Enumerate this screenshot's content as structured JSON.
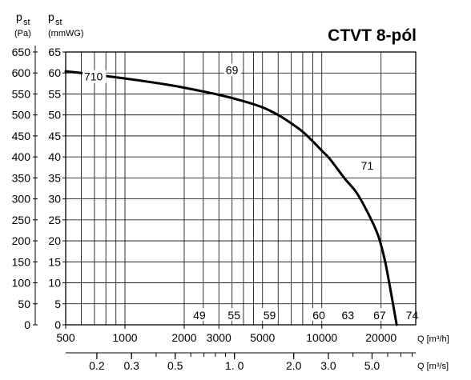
{
  "chart_data": {
    "type": "line",
    "title": "CTVT 8-pól",
    "x_scale": "log",
    "y_scale": "linear",
    "grid": true,
    "y_left_label": {
      "symbol": "p",
      "sub": "st",
      "unit": "(Pa)"
    },
    "y_right_label": {
      "symbol": "p",
      "sub": "st",
      "unit": "(mmWG)"
    },
    "x_flow_label": "Q [m³/h]",
    "x_flow_secondary_label": "Q [m³/s]",
    "xlim_m3h": [
      500,
      30000
    ],
    "ylim_pa": [
      0,
      650
    ],
    "ylim_mmwg": [
      0,
      65
    ],
    "y_pa_ticks": [
      0,
      50,
      100,
      150,
      200,
      250,
      300,
      350,
      400,
      450,
      500,
      550,
      600,
      650
    ],
    "y_pa_tick_labels": [
      "0",
      "50",
      "100",
      "150",
      "200",
      "250",
      "300",
      "350",
      "400",
      "450",
      "500",
      "550",
      "600",
      "650"
    ],
    "y_mmwg_ticks": [
      0,
      5,
      10,
      15,
      20,
      25,
      30,
      35,
      40,
      45,
      50,
      55,
      60,
      65
    ],
    "y_mmwg_tick_labels": [
      "0",
      "5",
      "10",
      "15",
      "20",
      "25",
      "30",
      "35",
      "40",
      "45",
      "50",
      "55",
      "60",
      "65"
    ],
    "x_gridlines_m3h": [
      600,
      700,
      800,
      900,
      1000,
      2000,
      2500,
      3000,
      3500,
      4000,
      4500,
      5000,
      6000,
      7000,
      8000,
      9000,
      10000,
      20000
    ],
    "x_m3h_ticks": [
      {
        "value": 500,
        "label": "500"
      },
      {
        "value": 1000,
        "label": "1000"
      },
      {
        "value": 2000,
        "label": "2000"
      },
      {
        "value": 3000,
        "label": "3000"
      },
      {
        "value": 5000,
        "label": "5000"
      },
      {
        "value": 10000,
        "label": "10000"
      },
      {
        "value": 20000,
        "label": "20000"
      }
    ],
    "x_m3s_ticks": [
      {
        "value": 0.2,
        "label": "0.2"
      },
      {
        "value": 0.3,
        "label": "0.3"
      },
      {
        "value": 0.5,
        "label": "0.5"
      },
      {
        "value": 1.0,
        "label": "1. 0"
      },
      {
        "value": 2.0,
        "label": "2.0"
      },
      {
        "value": 3.0,
        "label": "3.0"
      },
      {
        "value": 5.0,
        "label": "5.0"
      }
    ],
    "series": [
      {
        "x_m3h": [
          500,
          600,
          700,
          1000,
          1500,
          2000,
          3000,
          4000,
          5000,
          6000,
          7000,
          8000,
          9000,
          10000,
          11000,
          13000,
          15000,
          17000,
          19000,
          20000,
          21000,
          22000,
          23000,
          24000
        ],
        "y_pa": [
          604,
          600,
          596,
          587,
          575,
          565,
          548,
          533,
          518,
          500,
          480,
          460,
          437,
          415,
          395,
          350,
          315,
          270,
          222,
          190,
          150,
          100,
          50,
          0
        ]
      }
    ],
    "curve_annotations": [
      {
        "text": "710",
        "x_m3h": 620,
        "y_pa": 582
      },
      {
        "text": "69",
        "x_m3h": 3250,
        "y_pa": 598
      },
      {
        "text": "71",
        "x_m3h": 15800,
        "y_pa": 370
      }
    ],
    "bottom_labels": [
      {
        "text": "49",
        "x_m3h": 2200
      },
      {
        "text": "55",
        "x_m3h": 3300
      },
      {
        "text": "59",
        "x_m3h": 5000
      },
      {
        "text": "60",
        "x_m3h": 8900
      },
      {
        "text": "63",
        "x_m3h": 12500
      },
      {
        "text": "67",
        "x_m3h": 18100
      },
      {
        "text": "74",
        "x_m3h": 26500
      }
    ]
  }
}
